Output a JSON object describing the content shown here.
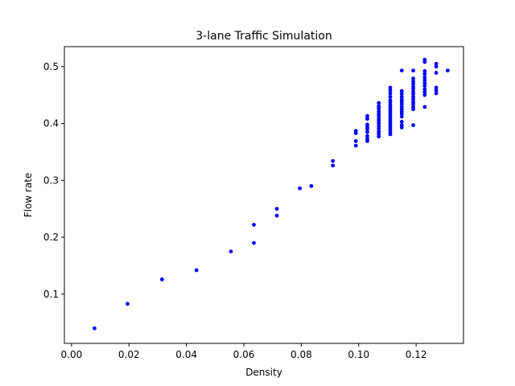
{
  "chart_data": {
    "type": "scatter",
    "title": "3-lane Traffic Simulation",
    "xlabel": "Density",
    "ylabel": "Flow rate",
    "xlim": [
      -0.0025,
      0.1365
    ],
    "ylim": [
      0.0135,
      0.535
    ],
    "xticks": [
      0.0,
      0.02,
      0.04,
      0.06,
      0.08,
      0.1,
      0.12
    ],
    "xtick_labels": [
      "0.00",
      "0.02",
      "0.04",
      "0.06",
      "0.08",
      "0.10",
      "0.12"
    ],
    "yticks": [
      0.1,
      0.2,
      0.3,
      0.4,
      0.5
    ],
    "ytick_labels": [
      "0.1",
      "0.2",
      "0.3",
      "0.4",
      "0.5"
    ],
    "grid": false,
    "marker_color": "#0000ff",
    "series": [
      {
        "points": [
          [
            0.008,
            0.04
          ],
          [
            0.0195,
            0.083
          ],
          [
            0.0315,
            0.126
          ],
          [
            0.0435,
            0.142
          ],
          [
            0.0555,
            0.175
          ],
          [
            0.0635,
            0.19
          ],
          [
            0.0635,
            0.222
          ],
          [
            0.0715,
            0.238
          ],
          [
            0.0715,
            0.25
          ],
          [
            0.0795,
            0.286
          ],
          [
            0.0835,
            0.29
          ],
          [
            0.091,
            0.326
          ],
          [
            0.091,
            0.334
          ],
          [
            0.099,
            0.361
          ],
          [
            0.099,
            0.369
          ],
          [
            0.099,
            0.383
          ],
          [
            0.099,
            0.387
          ],
          [
            0.103,
            0.369
          ],
          [
            0.103,
            0.373
          ],
          [
            0.103,
            0.378
          ],
          [
            0.103,
            0.385
          ],
          [
            0.103,
            0.39
          ],
          [
            0.103,
            0.394
          ],
          [
            0.103,
            0.398
          ],
          [
            0.103,
            0.408
          ],
          [
            0.103,
            0.413
          ],
          [
            0.107,
            0.377
          ],
          [
            0.107,
            0.382
          ],
          [
            0.107,
            0.386
          ],
          [
            0.107,
            0.391
          ],
          [
            0.107,
            0.395
          ],
          [
            0.107,
            0.4
          ],
          [
            0.107,
            0.404
          ],
          [
            0.107,
            0.408
          ],
          [
            0.107,
            0.413
          ],
          [
            0.107,
            0.417
          ],
          [
            0.107,
            0.421
          ],
          [
            0.107,
            0.426
          ],
          [
            0.107,
            0.43
          ],
          [
            0.107,
            0.436
          ],
          [
            0.111,
            0.381
          ],
          [
            0.111,
            0.385
          ],
          [
            0.111,
            0.389
          ],
          [
            0.111,
            0.393
          ],
          [
            0.111,
            0.397
          ],
          [
            0.111,
            0.401
          ],
          [
            0.111,
            0.405
          ],
          [
            0.111,
            0.409
          ],
          [
            0.111,
            0.413
          ],
          [
            0.111,
            0.417
          ],
          [
            0.111,
            0.421
          ],
          [
            0.111,
            0.425
          ],
          [
            0.111,
            0.429
          ],
          [
            0.111,
            0.433
          ],
          [
            0.111,
            0.437
          ],
          [
            0.111,
            0.441
          ],
          [
            0.111,
            0.447
          ],
          [
            0.111,
            0.453
          ],
          [
            0.111,
            0.458
          ],
          [
            0.111,
            0.463
          ],
          [
            0.115,
            0.393
          ],
          [
            0.115,
            0.397
          ],
          [
            0.115,
            0.403
          ],
          [
            0.115,
            0.412
          ],
          [
            0.115,
            0.417
          ],
          [
            0.115,
            0.421
          ],
          [
            0.115,
            0.425
          ],
          [
            0.115,
            0.429
          ],
          [
            0.115,
            0.434
          ],
          [
            0.115,
            0.438
          ],
          [
            0.115,
            0.442
          ],
          [
            0.115,
            0.447
          ],
          [
            0.115,
            0.452
          ],
          [
            0.115,
            0.457
          ],
          [
            0.115,
            0.493
          ],
          [
            0.119,
            0.397
          ],
          [
            0.119,
            0.425
          ],
          [
            0.119,
            0.429
          ],
          [
            0.119,
            0.434
          ],
          [
            0.119,
            0.438
          ],
          [
            0.119,
            0.443
          ],
          [
            0.119,
            0.447
          ],
          [
            0.119,
            0.452
          ],
          [
            0.119,
            0.456
          ],
          [
            0.119,
            0.461
          ],
          [
            0.119,
            0.465
          ],
          [
            0.119,
            0.47
          ],
          [
            0.119,
            0.474
          ],
          [
            0.119,
            0.479
          ],
          [
            0.119,
            0.493
          ],
          [
            0.123,
            0.429
          ],
          [
            0.123,
            0.45
          ],
          [
            0.123,
            0.455
          ],
          [
            0.123,
            0.46
          ],
          [
            0.123,
            0.466
          ],
          [
            0.123,
            0.471
          ],
          [
            0.123,
            0.476
          ],
          [
            0.123,
            0.481
          ],
          [
            0.123,
            0.487
          ],
          [
            0.123,
            0.492
          ],
          [
            0.123,
            0.508
          ],
          [
            0.123,
            0.512
          ],
          [
            0.127,
            0.453
          ],
          [
            0.127,
            0.458
          ],
          [
            0.127,
            0.463
          ],
          [
            0.127,
            0.489
          ],
          [
            0.127,
            0.5
          ],
          [
            0.127,
            0.505
          ],
          [
            0.131,
            0.493
          ]
        ]
      }
    ]
  }
}
